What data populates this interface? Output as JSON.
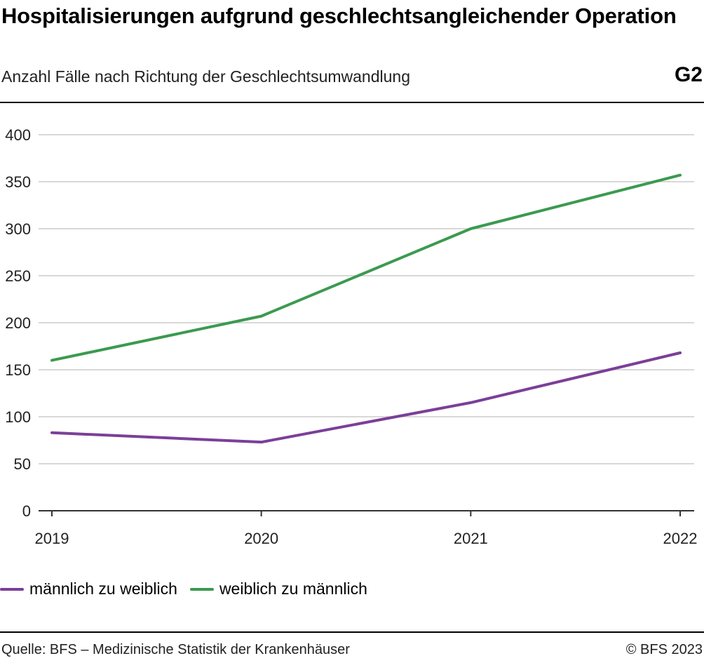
{
  "header": {
    "title": "Hospitalisierungen aufgrund geschlechtsangleichender Operation",
    "subtitle": "Anzahl Fälle nach Richtung der Geschlechtsumwandlung",
    "figure_id": "G2"
  },
  "footer": {
    "source": "Quelle: BFS – Medizinische Statistik der Krankenhäuser",
    "copyright": "© BFS 2023"
  },
  "colors": {
    "male_to_female": "#7b3f98",
    "female_to_male": "#3b9a4f",
    "grid": "#cccccc",
    "axis": "#333333"
  },
  "chart_data": {
    "type": "line",
    "title": "Hospitalisierungen aufgrund geschlechtsangleichender Operation",
    "subtitle": "Anzahl Fälle nach Richtung der Geschlechtsumwandlung",
    "x": [
      "2019",
      "2020",
      "2021",
      "2022"
    ],
    "yticks": [
      0,
      50,
      100,
      150,
      200,
      250,
      300,
      350,
      400
    ],
    "ylim": [
      0,
      400
    ],
    "grid": true,
    "legend_position": "bottom-left",
    "series": [
      {
        "name": "männlich zu weiblich",
        "color": "#7b3f98",
        "values": [
          83,
          73,
          115,
          168
        ]
      },
      {
        "name": "weiblich zu männlich",
        "color": "#3b9a4f",
        "values": [
          160,
          207,
          300,
          357
        ]
      }
    ]
  }
}
